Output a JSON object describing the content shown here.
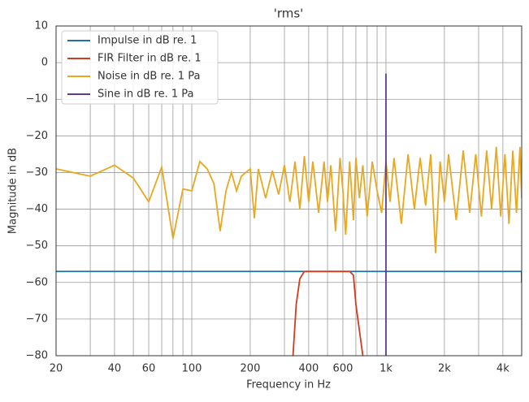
{
  "chart_data": {
    "type": "line",
    "title": "'rms'",
    "x_label": "Frequency in Hz",
    "y_label": "Magnitude in dB",
    "xscale": "log",
    "xlim": [
      20,
      5000
    ],
    "ylim": [
      -80,
      10
    ],
    "xticks": [
      20,
      40,
      60,
      100,
      200,
      400,
      600,
      {
        "value": 1000,
        "label": "1k"
      },
      {
        "value": 2000,
        "label": "2k"
      },
      {
        "value": 4000,
        "label": "4k"
      }
    ],
    "xminorticks": [
      30,
      50,
      70,
      80,
      90,
      300,
      500,
      700,
      800,
      900,
      3000
    ],
    "yticks": [
      {
        "value": -80,
        "label": "−80"
      },
      {
        "value": -70,
        "label": "−70"
      },
      {
        "value": -60,
        "label": "−60"
      },
      {
        "value": -50,
        "label": "−50"
      },
      {
        "value": -40,
        "label": "−40"
      },
      {
        "value": -30,
        "label": "−30"
      },
      {
        "value": -20,
        "label": "−20"
      },
      {
        "value": -10,
        "label": "−10"
      },
      0,
      10
    ],
    "grid": true,
    "legend": "upper left",
    "series": [
      {
        "name": "Impulse in dB re. 1",
        "color": "#1f6fa8",
        "x": [
          20,
          4990,
          5000
        ],
        "values": [
          -57,
          -57,
          -60
        ]
      },
      {
        "name": "FIR Filter in dB re. 1",
        "color": "#d03c1e",
        "x": [
          332,
          345,
          360,
          380,
          650,
          680,
          700,
          760
        ],
        "values": [
          -80,
          -66,
          -59,
          -57,
          -57,
          -58,
          -66,
          -80
        ]
      },
      {
        "name": "Noise in dB re. 1 Pa",
        "color": "#e8a820",
        "x": [
          20,
          30,
          40,
          50,
          60,
          70,
          80,
          90,
          100,
          110,
          120,
          130,
          140,
          150,
          160,
          170,
          180,
          200,
          210,
          220,
          240,
          260,
          280,
          300,
          320,
          340,
          360,
          380,
          400,
          420,
          450,
          480,
          500,
          520,
          550,
          580,
          600,
          620,
          650,
          680,
          700,
          730,
          760,
          800,
          850,
          900,
          950,
          1000,
          1050,
          1100,
          1200,
          1300,
          1400,
          1500,
          1600,
          1700,
          1800,
          1900,
          2000,
          2100,
          2300,
          2500,
          2700,
          2900,
          3100,
          3300,
          3500,
          3700,
          3900,
          4100,
          4300,
          4500,
          4700,
          4900,
          5000
        ],
        "values": [
          -29,
          -31,
          -28,
          -31.5,
          -38,
          -28.5,
          -48,
          -34.5,
          -35,
          -27,
          -29,
          -33,
          -46,
          -35,
          -30,
          -35,
          -31,
          -29,
          -42.5,
          -29,
          -37,
          -29.5,
          -36,
          -28,
          -38,
          -27,
          -40,
          -25.5,
          -38,
          -27,
          -41,
          -27,
          -38,
          -28,
          -46,
          -26,
          -35,
          -47,
          -27,
          -43,
          -26,
          -37,
          -28,
          -42,
          -27,
          -35,
          -41,
          -27,
          -38,
          -26,
          -44,
          -25,
          -40,
          -26,
          -39,
          -25,
          -52,
          -27,
          -38,
          -25,
          -43,
          -24,
          -41,
          -25,
          -42,
          -24,
          -40,
          -23,
          -42,
          -25,
          -44,
          -24,
          -41,
          -23,
          -37
        ]
      },
      {
        "name": "Sine in dB re. 1 Pa",
        "color": "#5e3c8c",
        "x": [
          1000,
          1000
        ],
        "values": [
          -80,
          -3
        ]
      }
    ]
  }
}
